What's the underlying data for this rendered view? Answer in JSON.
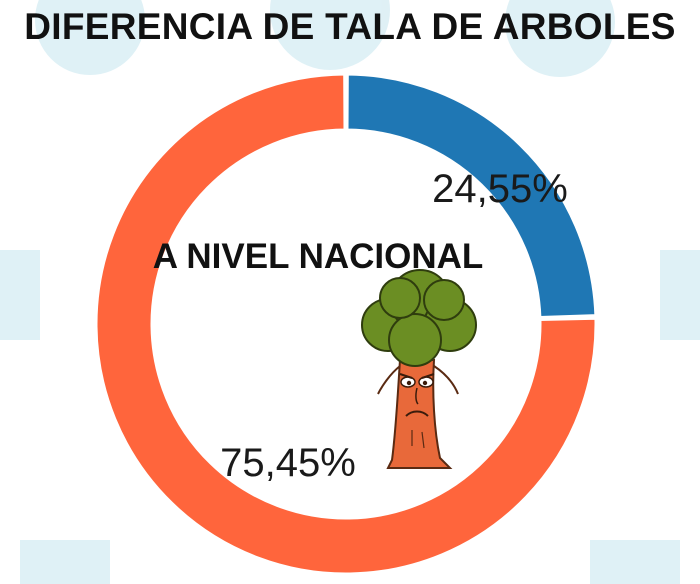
{
  "title": "DIFERENCIA DE TALA DE ARBOLES",
  "center_label": "A NIVEL NACIONAL",
  "colors": {
    "blue_segment": "#1F77B4",
    "orange_segment": "#FF653C",
    "tree_foliage": "#6B8E23",
    "tree_trunk": "#E8693A",
    "watermark": "#DCEFF5"
  },
  "icons": [
    "sad-tree-icon"
  ],
  "chart_data": {
    "type": "pie",
    "donut": true,
    "categories": [
      "",
      ""
    ],
    "values": [
      24.55,
      75.45
    ],
    "labels": [
      "24,55%",
      "75,45%"
    ],
    "colors": [
      "#1F77B4",
      "#FF653C"
    ],
    "title": "DIFERENCIA DE TALA DE ARBOLES",
    "start": "top, clockwise"
  }
}
